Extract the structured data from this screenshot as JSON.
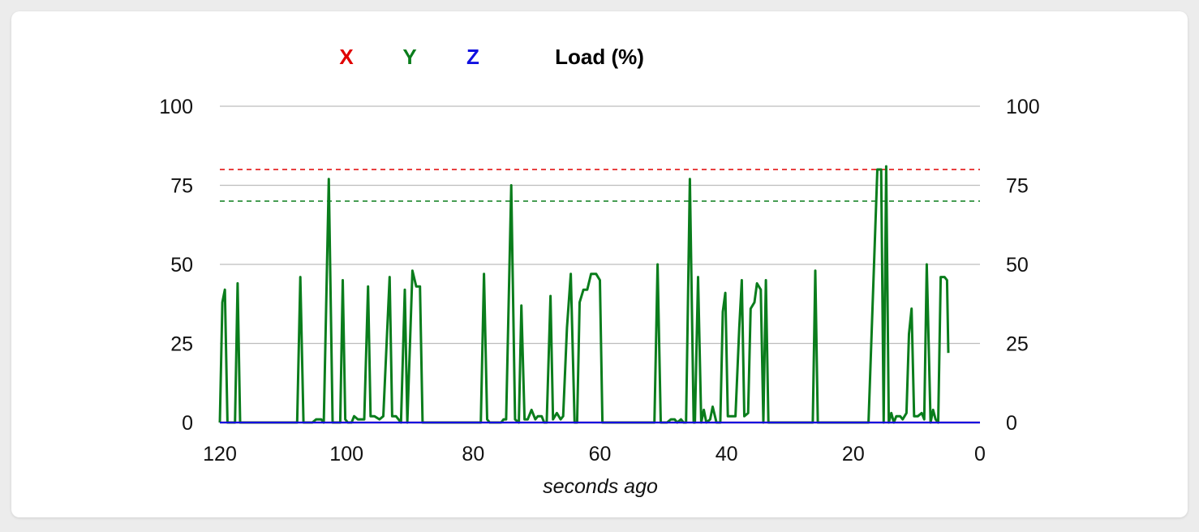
{
  "chart_data": {
    "type": "line",
    "xlabel": "seconds ago",
    "x_ticks": [
      "120",
      "100",
      "80",
      "60",
      "40",
      "20",
      "0"
    ],
    "y_ticks": [
      "0",
      "25",
      "50",
      "75",
      "100"
    ],
    "xlim": [
      120,
      0
    ],
    "ylim": [
      0,
      100
    ],
    "grid": true,
    "legend_position": "top",
    "legend": [
      {
        "label": "X",
        "color": "#e00000"
      },
      {
        "label": "Y",
        "color": "#0a7d1c"
      },
      {
        "label": "Z",
        "color": "#1010e0"
      },
      {
        "label": "Load (%)",
        "color": "#000000"
      }
    ],
    "thresholds": [
      {
        "value": 80,
        "color": "#e00000",
        "style": "dashed"
      },
      {
        "value": 70,
        "color": "#0a7d1c",
        "style": "dashed"
      }
    ],
    "series": [
      {
        "name": "X",
        "color": "#e00000",
        "points": [
          [
            120,
            0
          ],
          [
            0,
            0
          ]
        ]
      },
      {
        "name": "Y",
        "color": "#0a7d1c",
        "points": [
          [
            120,
            0
          ],
          [
            119.6,
            38
          ],
          [
            119.2,
            42
          ],
          [
            118.8,
            0
          ],
          [
            117.6,
            0
          ],
          [
            117.2,
            44
          ],
          [
            116.8,
            0
          ],
          [
            107.8,
            0
          ],
          [
            107.3,
            46
          ],
          [
            106.8,
            0
          ],
          [
            105.4,
            0
          ],
          [
            104.8,
            1
          ],
          [
            104,
            1
          ],
          [
            103.6,
            0
          ],
          [
            102.8,
            77
          ],
          [
            102.2,
            0
          ],
          [
            101,
            0
          ],
          [
            100.6,
            45
          ],
          [
            100.2,
            1
          ],
          [
            99.8,
            0
          ],
          [
            99.2,
            0
          ],
          [
            98.8,
            2
          ],
          [
            98.2,
            1
          ],
          [
            97.6,
            1
          ],
          [
            97.2,
            1
          ],
          [
            96.6,
            43
          ],
          [
            96.2,
            2
          ],
          [
            95.6,
            2
          ],
          [
            94.8,
            1
          ],
          [
            94.2,
            2
          ],
          [
            93.6,
            28
          ],
          [
            93.2,
            46
          ],
          [
            92.8,
            2
          ],
          [
            92.2,
            2
          ],
          [
            91.8,
            1
          ],
          [
            91.4,
            0
          ],
          [
            90.8,
            42
          ],
          [
            90.4,
            0
          ],
          [
            89.6,
            48
          ],
          [
            89,
            43
          ],
          [
            88.4,
            43
          ],
          [
            88,
            0
          ],
          [
            86.8,
            0
          ],
          [
            78.8,
            0
          ],
          [
            78.3,
            47
          ],
          [
            77.8,
            1
          ],
          [
            77.4,
            0
          ],
          [
            75.6,
            0
          ],
          [
            75.2,
            1
          ],
          [
            74.8,
            1
          ],
          [
            74,
            75
          ],
          [
            73.4,
            1
          ],
          [
            72.8,
            0
          ],
          [
            72.4,
            37
          ],
          [
            71.9,
            1
          ],
          [
            71.4,
            1
          ],
          [
            70.8,
            4
          ],
          [
            70.2,
            1
          ],
          [
            69.8,
            2
          ],
          [
            69.2,
            2
          ],
          [
            68.8,
            0
          ],
          [
            68.4,
            0
          ],
          [
            67.8,
            40
          ],
          [
            67.4,
            1
          ],
          [
            66.8,
            3
          ],
          [
            66.2,
            1
          ],
          [
            65.8,
            2
          ],
          [
            65.2,
            30
          ],
          [
            64.6,
            47
          ],
          [
            64,
            0
          ],
          [
            63.6,
            0
          ],
          [
            63.2,
            38
          ],
          [
            62.6,
            42
          ],
          [
            62,
            42
          ],
          [
            61.4,
            47
          ],
          [
            60.6,
            47
          ],
          [
            60,
            45
          ],
          [
            59.6,
            0
          ],
          [
            58,
            0
          ],
          [
            51.4,
            0
          ],
          [
            50.9,
            50
          ],
          [
            50.4,
            0
          ],
          [
            49.4,
            0
          ],
          [
            48.8,
            1
          ],
          [
            48.2,
            1
          ],
          [
            47.8,
            0
          ],
          [
            47.2,
            1
          ],
          [
            46.8,
            0
          ],
          [
            46.4,
            0
          ],
          [
            45.8,
            77
          ],
          [
            45.2,
            0
          ],
          [
            45,
            0
          ],
          [
            44.5,
            46
          ],
          [
            44,
            0
          ],
          [
            43.6,
            4
          ],
          [
            43.2,
            0
          ],
          [
            42.6,
            1
          ],
          [
            42.2,
            5
          ],
          [
            41.6,
            0
          ],
          [
            41,
            0
          ],
          [
            40.6,
            35
          ],
          [
            40.2,
            41
          ],
          [
            39.8,
            2
          ],
          [
            39.2,
            2
          ],
          [
            38.6,
            2
          ],
          [
            38,
            30
          ],
          [
            37.6,
            45
          ],
          [
            37.2,
            2
          ],
          [
            36.6,
            3
          ],
          [
            36.2,
            36
          ],
          [
            35.6,
            38
          ],
          [
            35.2,
            44
          ],
          [
            34.6,
            42
          ],
          [
            34.2,
            0
          ],
          [
            33.8,
            45
          ],
          [
            33.4,
            0
          ],
          [
            32.8,
            0
          ],
          [
            26.4,
            0
          ],
          [
            26,
            48
          ],
          [
            25.6,
            0
          ],
          [
            25.2,
            0
          ],
          [
            24.6,
            0
          ],
          [
            17.6,
            0
          ],
          [
            16.2,
            80
          ],
          [
            15.6,
            80
          ],
          [
            15.2,
            0
          ],
          [
            14.8,
            81
          ],
          [
            14.4,
            0
          ],
          [
            14,
            3
          ],
          [
            13.6,
            0
          ],
          [
            13.2,
            2
          ],
          [
            12.6,
            2
          ],
          [
            12.2,
            1
          ],
          [
            11.6,
            3
          ],
          [
            11.2,
            28
          ],
          [
            10.8,
            36
          ],
          [
            10.4,
            2
          ],
          [
            9.8,
            2
          ],
          [
            9.2,
            3
          ],
          [
            8.8,
            1
          ],
          [
            8.4,
            50
          ],
          [
            7.8,
            0
          ],
          [
            7.4,
            4
          ],
          [
            7,
            1
          ],
          [
            6.6,
            0
          ],
          [
            6.2,
            46
          ],
          [
            5.6,
            46
          ],
          [
            5.2,
            45
          ],
          [
            5,
            22
          ]
        ]
      },
      {
        "name": "Z",
        "color": "#1010e0",
        "points": [
          [
            120,
            0
          ],
          [
            0,
            0
          ]
        ]
      }
    ]
  }
}
